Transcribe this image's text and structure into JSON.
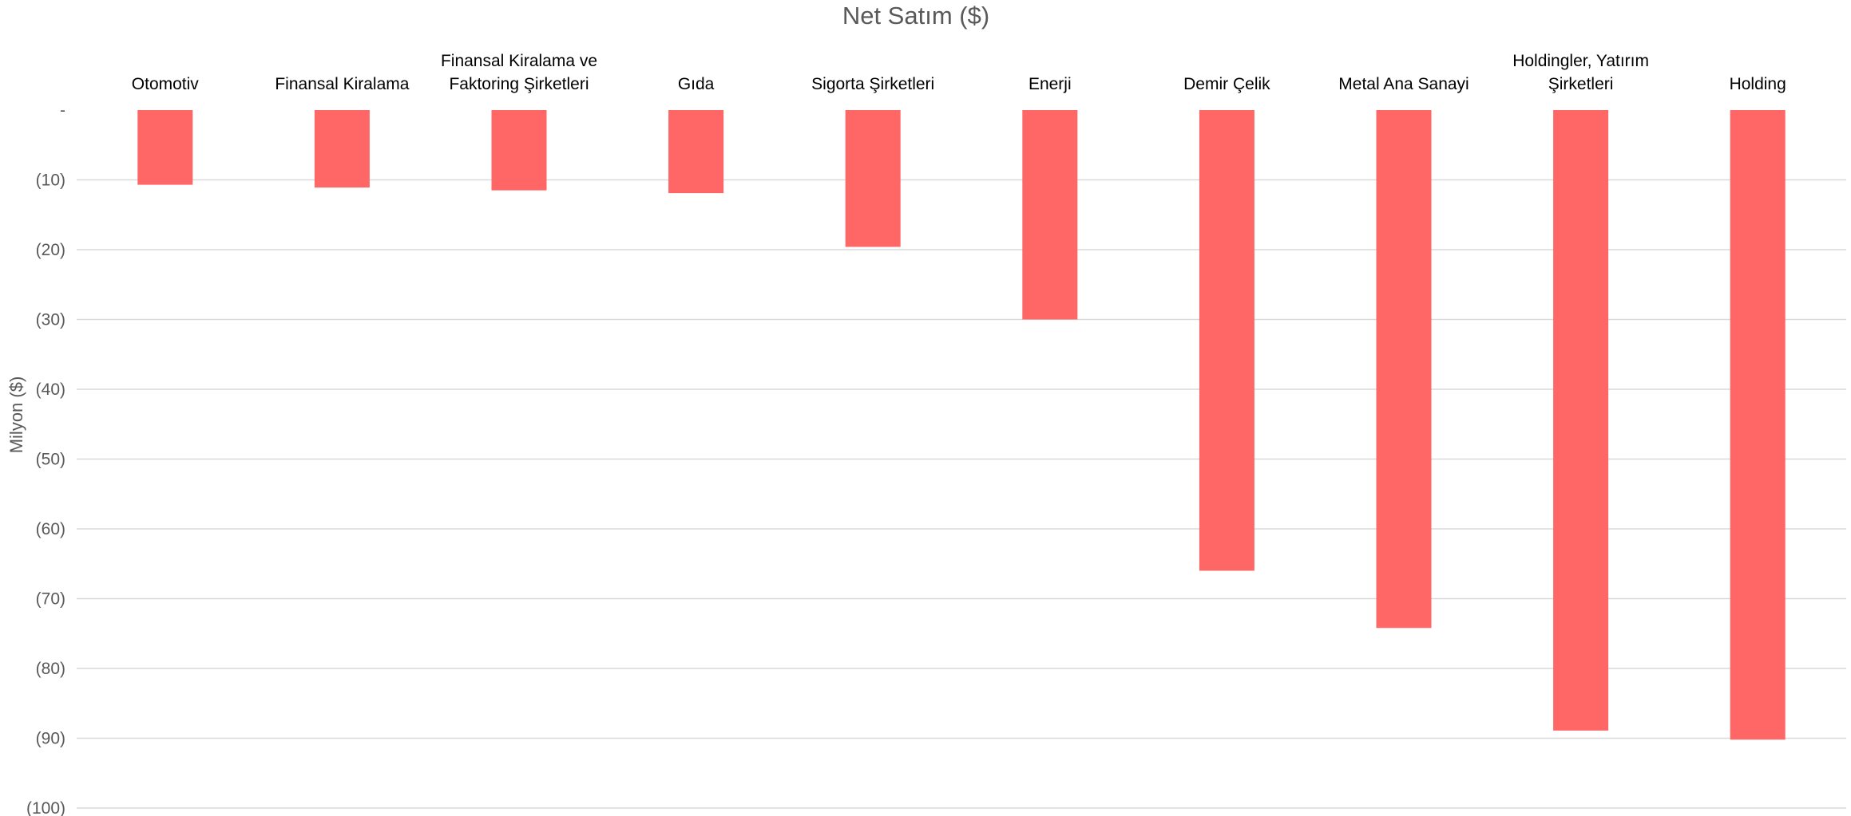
{
  "chart_data": {
    "type": "bar",
    "title": "Net Satım ($)",
    "ylabel": "Milyon ($)",
    "xlabel": "",
    "categories": [
      [
        "Otomotiv"
      ],
      [
        "Finansal Kiralama"
      ],
      [
        "Finansal Kiralama ve",
        "Faktoring Şirketleri"
      ],
      [
        "Gıda"
      ],
      [
        "Sigorta Şirketleri"
      ],
      [
        "Enerji"
      ],
      [
        "Demir Çelik"
      ],
      [
        "Metal Ana Sanayi"
      ],
      [
        "Holdingler, Yatırım",
        "Şirketleri"
      ],
      [
        "Holding"
      ]
    ],
    "values": [
      -10.7,
      -11.1,
      -11.5,
      -11.9,
      -19.6,
      -30.0,
      -66.0,
      -74.2,
      -88.9,
      -90.2
    ],
    "ylim": [
      -100,
      0
    ],
    "yticks": [
      0,
      -10,
      -20,
      -30,
      -40,
      -50,
      -60,
      -70,
      -80,
      -90,
      -100
    ],
    "ytick_labels": [
      "-",
      "(10)",
      "(20)",
      "(30)",
      "(40)",
      "(50)",
      "(60)",
      "(70)",
      "(80)",
      "(90)",
      "(100)"
    ],
    "x_tick_position": "top",
    "grid": true,
    "bar_color": "#ff6666"
  }
}
